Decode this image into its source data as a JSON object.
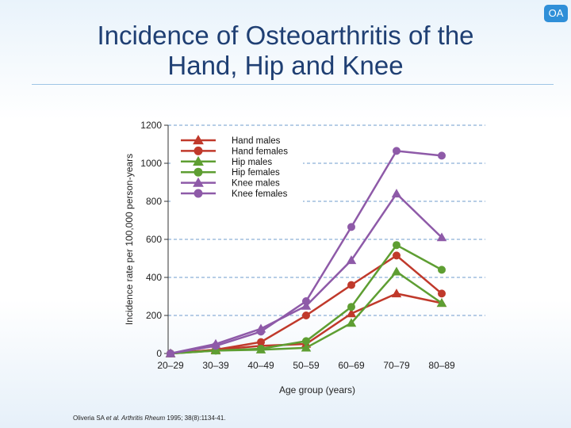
{
  "badge": "OA",
  "slide": {
    "title_line1": "Incidence of Osteoarthritis of the",
    "title_line2": "Hand, Hip and Knee",
    "citation_prefix": "Oliveria SA ",
    "citation_etal": "et al. Arthritis Rheum",
    "citation_suffix": " 1995; 38(8):1134-41."
  },
  "chart_data": {
    "type": "line",
    "title": "Incidence of Osteoarthritis of the Hand, Hip and Knee",
    "xlabel": "Age group (years)",
    "ylabel": "Incidence rate per 100,000 person-years",
    "categories": [
      "20–29",
      "30–39",
      "40–49",
      "50–59",
      "60–69",
      "70–79",
      "80–89"
    ],
    "ylim": [
      0,
      1200
    ],
    "yticks": [
      0,
      200,
      400,
      600,
      800,
      1000,
      1200
    ],
    "grid": true,
    "legend_position": "top-center",
    "series": [
      {
        "name": "Hand males",
        "color": "#c0392b",
        "marker": "triangle",
        "values": [
          0,
          20,
          40,
          50,
          210,
          315,
          265
        ]
      },
      {
        "name": "Hand females",
        "color": "#c0392b",
        "marker": "circle",
        "values": [
          0,
          20,
          60,
          200,
          360,
          515,
          315
        ]
      },
      {
        "name": "Hip males",
        "color": "#5e9e32",
        "marker": "triangle",
        "values": [
          0,
          15,
          20,
          30,
          160,
          430,
          265
        ]
      },
      {
        "name": "Hip females",
        "color": "#5e9e32",
        "marker": "circle",
        "values": [
          0,
          15,
          25,
          65,
          245,
          570,
          440
        ]
      },
      {
        "name": "Knee males",
        "color": "#8e5aa8",
        "marker": "triangle",
        "values": [
          0,
          50,
          130,
          250,
          490,
          840,
          610
        ]
      },
      {
        "name": "Knee females",
        "color": "#8e5aa8",
        "marker": "circle",
        "values": [
          0,
          40,
          115,
          275,
          665,
          1065,
          1040
        ]
      }
    ]
  }
}
